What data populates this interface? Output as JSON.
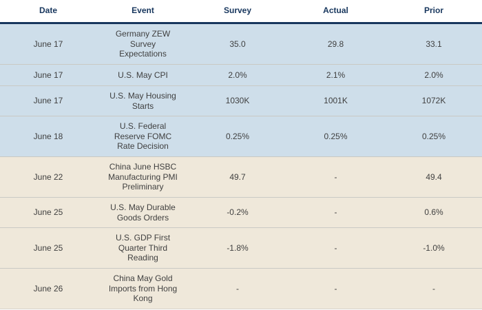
{
  "colors": {
    "header_text_navy": "#17365d",
    "header_border_navy": "#17365d",
    "row_blue_bg": "#cedeea",
    "row_tan_bg": "#efe8da",
    "cell_text": "#3f3f3f",
    "row_separator": "#c9c9c4"
  },
  "table": {
    "columns": [
      "Date",
      "Event",
      "Survey",
      "Actual",
      "Prior"
    ],
    "rows": [
      {
        "group": "blue",
        "date": "June 17",
        "event": "Germany ZEW\nSurvey\nExpectations",
        "survey": "35.0",
        "actual": "29.8",
        "prior": "33.1"
      },
      {
        "group": "blue",
        "date": "June 17",
        "event": "U.S. May CPI",
        "survey": "2.0%",
        "actual": "2.1%",
        "prior": "2.0%"
      },
      {
        "group": "blue",
        "date": "June 17",
        "event": "U.S. May Housing\nStarts",
        "survey": "1030K",
        "actual": "1001K",
        "prior": "1072K"
      },
      {
        "group": "blue",
        "date": "June 18",
        "event": "U.S. Federal\nReserve FOMC\nRate Decision",
        "survey": "0.25%",
        "actual": "0.25%",
        "prior": "0.25%"
      },
      {
        "group": "tan",
        "date": "June 22",
        "event": "China June HSBC\nManufacturing PMI\nPreliminary",
        "survey": "49.7",
        "actual": "-",
        "prior": "49.4"
      },
      {
        "group": "tan",
        "date": "June 25",
        "event": "U.S. May Durable\nGoods Orders",
        "survey": "-0.2%",
        "actual": "-",
        "prior": "0.6%"
      },
      {
        "group": "tan",
        "date": "June 25",
        "event": "U.S. GDP First\nQuarter Third\nReading",
        "survey": "-1.8%",
        "actual": "-",
        "prior": "-1.0%"
      },
      {
        "group": "tan",
        "date": "June 26",
        "event": "China May Gold\nImports from Hong\nKong",
        "survey": "-",
        "actual": "-",
        "prior": "-"
      }
    ]
  }
}
